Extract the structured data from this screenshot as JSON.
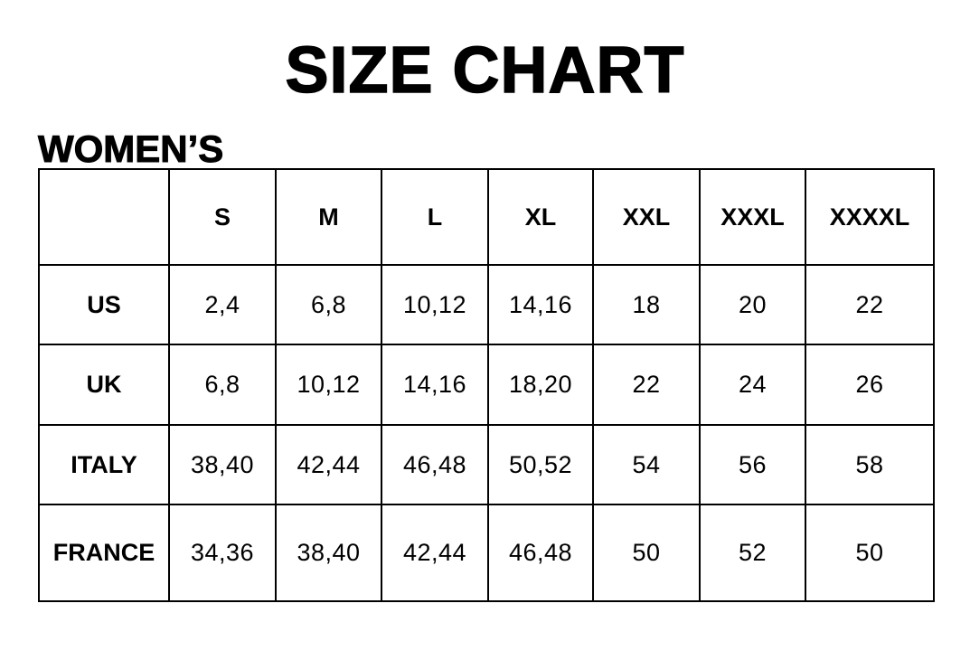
{
  "title": "SIZE CHART",
  "section": "WOMEN’S",
  "table": {
    "corner": "",
    "headers": [
      "S",
      "M",
      "L",
      "XL",
      "XXL",
      "XXXL",
      "XXXXL"
    ],
    "rows": [
      {
        "label": "US",
        "values": [
          "2,4",
          "6,8",
          "10,12",
          "14,16",
          "18",
          "20",
          "22"
        ]
      },
      {
        "label": "UK",
        "values": [
          "6,8",
          "10,12",
          "14,16",
          "18,20",
          "22",
          "24",
          "26"
        ]
      },
      {
        "label": "ITALY",
        "values": [
          "38,40",
          "42,44",
          "46,48",
          "50,52",
          "54",
          "56",
          "58"
        ]
      },
      {
        "label": "FRANCE",
        "values": [
          "34,36",
          "38,40",
          "42,44",
          "46,48",
          "50",
          "52",
          "50"
        ]
      }
    ]
  }
}
